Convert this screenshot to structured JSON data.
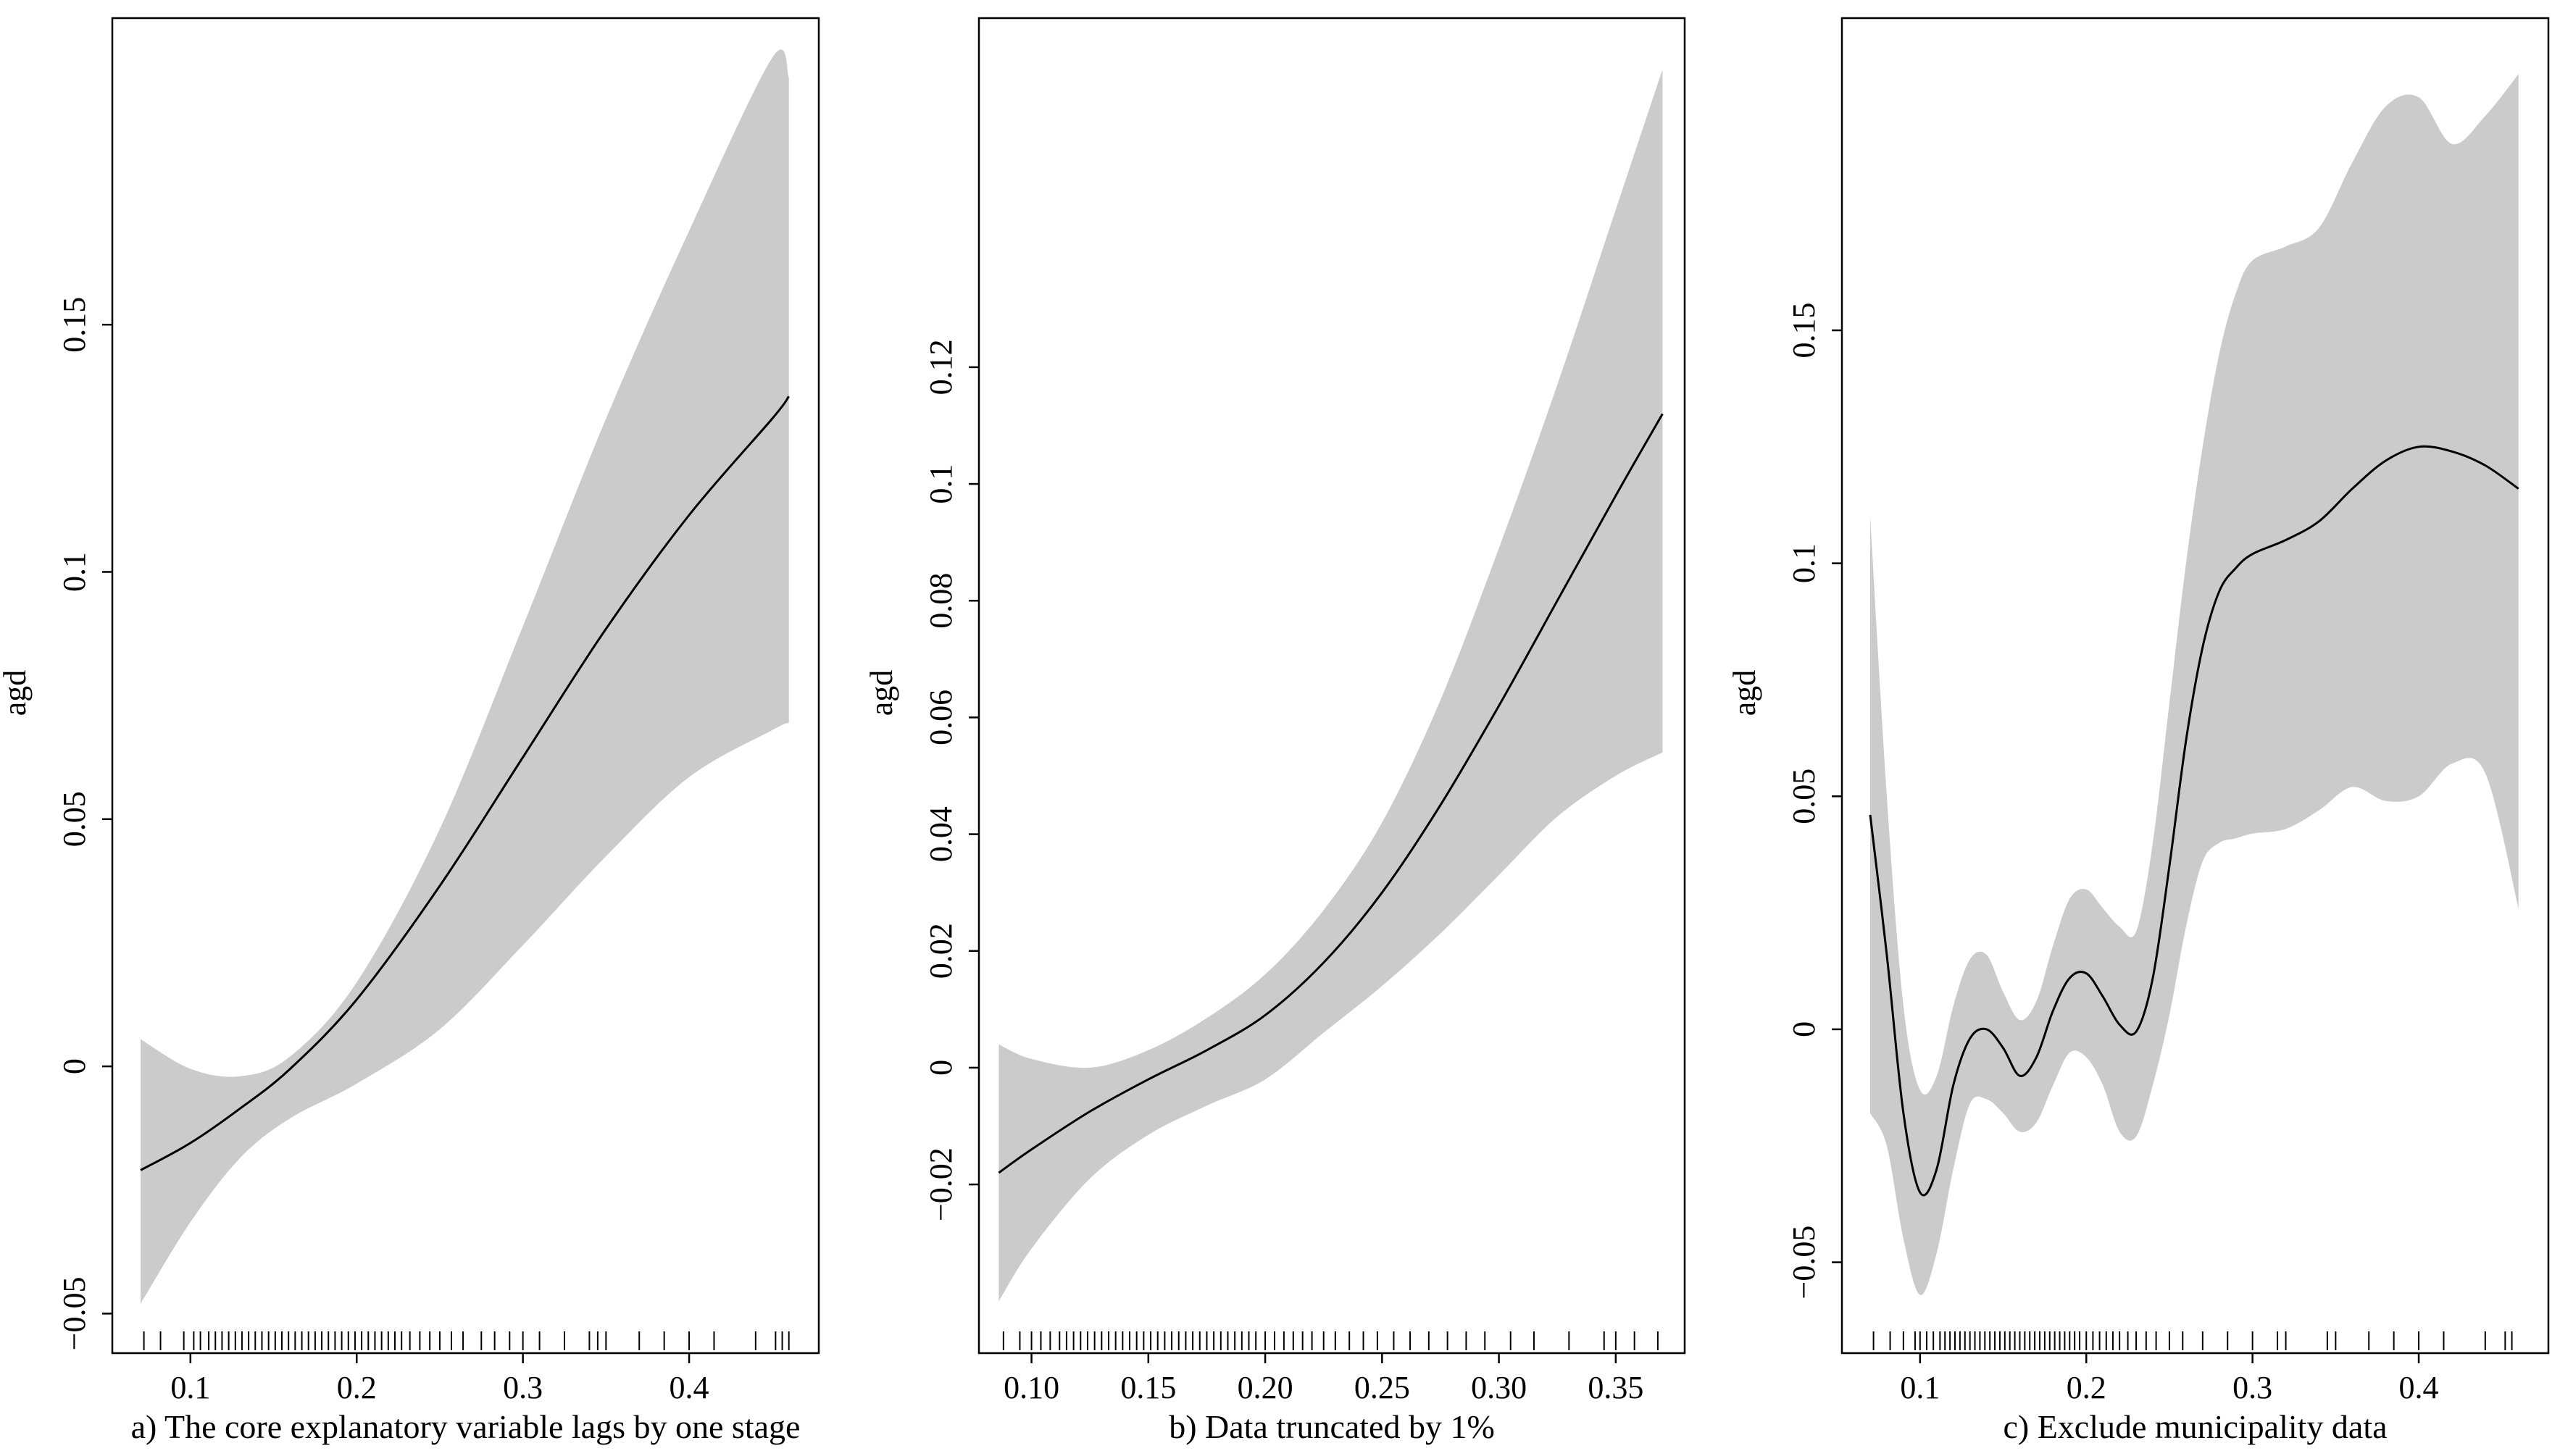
{
  "figure": {
    "panels": [
      {
        "caption": "a) The core explanatory variable lags by one stage",
        "ylabel": "agd",
        "xlim": [
          0.053,
          0.478
        ],
        "ylim": [
          -0.058,
          0.212
        ],
        "xticks": [
          {
            "v": 0.1,
            "label": "0.1"
          },
          {
            "v": 0.2,
            "label": "0.2"
          },
          {
            "v": 0.3,
            "label": "0.3"
          },
          {
            "v": 0.4,
            "label": "0.4"
          }
        ],
        "yticks": [
          {
            "v": -0.05,
            "label": "−0.05"
          },
          {
            "v": 0,
            "label": "0"
          },
          {
            "v": 0.05,
            "label": "0.05"
          },
          {
            "v": 0.1,
            "label": "0.1"
          },
          {
            "v": 0.15,
            "label": "0.15"
          }
        ]
      },
      {
        "caption": "b) Data truncated by 1%",
        "ylabel": "agd",
        "xlim": [
          0.0775,
          0.3795
        ],
        "ylim": [
          -0.0489,
          0.1798
        ],
        "xticks": [
          {
            "v": 0.1,
            "label": "0.10"
          },
          {
            "v": 0.15,
            "label": "0.15"
          },
          {
            "v": 0.2,
            "label": "0.20"
          },
          {
            "v": 0.25,
            "label": "0.25"
          },
          {
            "v": 0.3,
            "label": "0.30"
          },
          {
            "v": 0.35,
            "label": "0.35"
          }
        ],
        "yticks": [
          {
            "v": -0.02,
            "label": "−0.02"
          },
          {
            "v": 0,
            "label": "0"
          },
          {
            "v": 0.02,
            "label": "0.02"
          },
          {
            "v": 0.04,
            "label": "0.04"
          },
          {
            "v": 0.06,
            "label": "0.06"
          },
          {
            "v": 0.08,
            "label": "0.08"
          },
          {
            "v": 0.1,
            "label": "0.1"
          },
          {
            "v": 0.12,
            "label": "0.12"
          }
        ]
      },
      {
        "caption": "c) Exclude municipality data",
        "ylabel": "agd",
        "xlim": [
          0.053,
          0.478
        ],
        "ylim": [
          -0.0695,
          0.217
        ],
        "xticks": [
          {
            "v": 0.1,
            "label": "0.1"
          },
          {
            "v": 0.2,
            "label": "0.2"
          },
          {
            "v": 0.3,
            "label": "0.3"
          },
          {
            "v": 0.4,
            "label": "0.4"
          }
        ],
        "yticks": [
          {
            "v": -0.05,
            "label": "−0.05"
          },
          {
            "v": 0,
            "label": "0"
          },
          {
            "v": 0.05,
            "label": "0.05"
          },
          {
            "v": 0.1,
            "label": "0.1"
          },
          {
            "v": 0.15,
            "label": "0.15"
          }
        ]
      }
    ]
  },
  "chart_data": [
    {
      "type": "line",
      "title": "a) The core explanatory variable lags by one stage",
      "xlabel": "",
      "ylabel": "agd",
      "xlim": [
        0.053,
        0.478
      ],
      "ylim": [
        -0.058,
        0.212
      ],
      "grid": false,
      "series": [
        {
          "name": "fit",
          "x": [
            0.07,
            0.1,
            0.13,
            0.16,
            0.2,
            0.25,
            0.3,
            0.35,
            0.4,
            0.45,
            0.46
          ],
          "values": [
            -0.021,
            -0.0155,
            -0.0085,
            -0.0005,
            0.0135,
            0.0365,
            0.0625,
            0.0885,
            0.1115,
            0.131,
            0.1355
          ]
        },
        {
          "name": "upper",
          "x": [
            0.07,
            0.1,
            0.13,
            0.16,
            0.2,
            0.25,
            0.3,
            0.35,
            0.4,
            0.45,
            0.46
          ],
          "values": [
            0.0055,
            -0.0005,
            -0.002,
            0.002,
            0.017,
            0.048,
            0.089,
            0.131,
            0.169,
            0.204,
            0.2
          ]
        },
        {
          "name": "lower",
          "x": [
            0.07,
            0.1,
            0.13,
            0.16,
            0.2,
            0.25,
            0.3,
            0.35,
            0.4,
            0.45,
            0.46
          ],
          "values": [
            -0.048,
            -0.0315,
            -0.0185,
            -0.0105,
            -0.0035,
            0.0075,
            0.0245,
            0.0425,
            0.0585,
            0.068,
            0.0695
          ]
        }
      ],
      "rug": [
        0.072,
        0.082,
        0.096,
        0.102,
        0.106,
        0.111,
        0.115,
        0.119,
        0.123,
        0.127,
        0.131,
        0.135,
        0.139,
        0.143,
        0.147,
        0.151,
        0.155,
        0.159,
        0.163,
        0.167,
        0.171,
        0.175,
        0.179,
        0.183,
        0.187,
        0.191,
        0.195,
        0.199,
        0.203,
        0.207,
        0.211,
        0.215,
        0.219,
        0.223,
        0.227,
        0.232,
        0.238,
        0.244,
        0.25,
        0.257,
        0.264,
        0.275,
        0.283,
        0.292,
        0.3,
        0.31,
        0.325,
        0.34,
        0.345,
        0.35,
        0.37,
        0.385,
        0.4,
        0.415,
        0.44,
        0.452,
        0.456,
        0.46
      ]
    },
    {
      "type": "line",
      "title": "b) Data truncated by 1%",
      "xlabel": "",
      "ylabel": "agd",
      "xlim": [
        0.0775,
        0.3795
      ],
      "ylim": [
        -0.0489,
        0.1798
      ],
      "grid": false,
      "series": [
        {
          "name": "fit",
          "x": [
            0.086,
            0.1,
            0.125,
            0.15,
            0.175,
            0.2,
            0.225,
            0.25,
            0.275,
            0.3,
            0.325,
            0.35,
            0.37
          ],
          "values": [
            -0.018,
            -0.014,
            -0.0075,
            -0.002,
            0.003,
            0.009,
            0.018,
            0.03,
            0.045,
            0.062,
            0.08,
            0.098,
            0.112
          ]
        },
        {
          "name": "upper",
          "x": [
            0.086,
            0.1,
            0.125,
            0.15,
            0.175,
            0.2,
            0.225,
            0.25,
            0.275,
            0.3,
            0.325,
            0.35,
            0.37
          ],
          "values": [
            0.004,
            0.0015,
            0.0,
            0.003,
            0.0085,
            0.016,
            0.027,
            0.042,
            0.063,
            0.089,
            0.117,
            0.147,
            0.171
          ]
        },
        {
          "name": "lower",
          "x": [
            0.086,
            0.1,
            0.125,
            0.15,
            0.175,
            0.2,
            0.225,
            0.25,
            0.275,
            0.3,
            0.325,
            0.35,
            0.37
          ],
          "values": [
            -0.04,
            -0.031,
            -0.019,
            -0.0115,
            -0.0065,
            -0.002,
            0.006,
            0.014,
            0.023,
            0.033,
            0.043,
            0.05,
            0.054
          ]
        }
      ],
      "rug": [
        0.088,
        0.095,
        0.1,
        0.104,
        0.108,
        0.112,
        0.115,
        0.118,
        0.121,
        0.124,
        0.127,
        0.13,
        0.133,
        0.136,
        0.139,
        0.142,
        0.145,
        0.148,
        0.151,
        0.154,
        0.157,
        0.16,
        0.163,
        0.166,
        0.169,
        0.172,
        0.175,
        0.178,
        0.181,
        0.184,
        0.187,
        0.19,
        0.193,
        0.196,
        0.2,
        0.204,
        0.208,
        0.212,
        0.216,
        0.22,
        0.225,
        0.23,
        0.236,
        0.242,
        0.248,
        0.255,
        0.262,
        0.27,
        0.278,
        0.286,
        0.294,
        0.305,
        0.315,
        0.33,
        0.345,
        0.35,
        0.358,
        0.368
      ]
    },
    {
      "type": "line",
      "title": "c) Exclude municipality data",
      "xlabel": "",
      "ylabel": "agd",
      "xlim": [
        0.053,
        0.478
      ],
      "ylim": [
        -0.0695,
        0.217
      ],
      "grid": false,
      "series": [
        {
          "name": "fit",
          "x": [
            0.07,
            0.08,
            0.09,
            0.1,
            0.11,
            0.12,
            0.13,
            0.14,
            0.15,
            0.16,
            0.17,
            0.18,
            0.19,
            0.2,
            0.21,
            0.22,
            0.23,
            0.24,
            0.25,
            0.26,
            0.27,
            0.28,
            0.29,
            0.3,
            0.32,
            0.34,
            0.36,
            0.38,
            0.4,
            0.42,
            0.44,
            0.46
          ],
          "values": [
            0.046,
            0.016,
            -0.018,
            -0.035,
            -0.03,
            -0.012,
            -0.002,
            0.0,
            -0.004,
            -0.01,
            -0.006,
            0.004,
            0.011,
            0.012,
            0.007,
            0.001,
            -0.0005,
            0.011,
            0.035,
            0.062,
            0.082,
            0.094,
            0.099,
            0.102,
            0.105,
            0.109,
            0.116,
            0.122,
            0.125,
            0.124,
            0.121,
            0.116
          ]
        },
        {
          "name": "upper",
          "x": [
            0.07,
            0.08,
            0.09,
            0.1,
            0.11,
            0.12,
            0.13,
            0.14,
            0.15,
            0.16,
            0.17,
            0.18,
            0.19,
            0.2,
            0.21,
            0.22,
            0.23,
            0.24,
            0.25,
            0.26,
            0.27,
            0.28,
            0.29,
            0.3,
            0.32,
            0.34,
            0.36,
            0.38,
            0.4,
            0.42,
            0.44,
            0.46
          ],
          "values": [
            0.11,
            0.05,
            0.005,
            -0.013,
            -0.01,
            0.005,
            0.015,
            0.016,
            0.008,
            0.002,
            0.006,
            0.018,
            0.028,
            0.03,
            0.026,
            0.022,
            0.021,
            0.04,
            0.07,
            0.1,
            0.125,
            0.145,
            0.158,
            0.165,
            0.168,
            0.172,
            0.186,
            0.198,
            0.2,
            0.19,
            0.196,
            0.205
          ]
        },
        {
          "name": "lower",
          "x": [
            0.07,
            0.08,
            0.09,
            0.1,
            0.11,
            0.12,
            0.13,
            0.14,
            0.15,
            0.16,
            0.17,
            0.18,
            0.19,
            0.2,
            0.21,
            0.22,
            0.23,
            0.24,
            0.25,
            0.26,
            0.27,
            0.28,
            0.29,
            0.3,
            0.32,
            0.34,
            0.36,
            0.38,
            0.4,
            0.42,
            0.44,
            0.46
          ],
          "values": [
            -0.018,
            -0.025,
            -0.045,
            -0.057,
            -0.048,
            -0.03,
            -0.016,
            -0.015,
            -0.018,
            -0.022,
            -0.02,
            -0.012,
            -0.005,
            -0.006,
            -0.012,
            -0.022,
            -0.023,
            -0.012,
            0.003,
            0.022,
            0.036,
            0.04,
            0.041,
            0.042,
            0.043,
            0.047,
            0.052,
            0.049,
            0.05,
            0.057,
            0.055,
            0.026
          ]
        }
      ],
      "rug": [
        0.072,
        0.082,
        0.09,
        0.097,
        0.1,
        0.104,
        0.108,
        0.112,
        0.115,
        0.118,
        0.121,
        0.124,
        0.127,
        0.13,
        0.133,
        0.136,
        0.139,
        0.142,
        0.145,
        0.148,
        0.151,
        0.154,
        0.157,
        0.16,
        0.163,
        0.166,
        0.169,
        0.172,
        0.175,
        0.178,
        0.181,
        0.184,
        0.187,
        0.19,
        0.193,
        0.196,
        0.2,
        0.204,
        0.208,
        0.212,
        0.216,
        0.22,
        0.225,
        0.23,
        0.236,
        0.242,
        0.25,
        0.258,
        0.27,
        0.285,
        0.3,
        0.315,
        0.32,
        0.345,
        0.35,
        0.37,
        0.385,
        0.4,
        0.415,
        0.44,
        0.452,
        0.456
      ]
    }
  ]
}
